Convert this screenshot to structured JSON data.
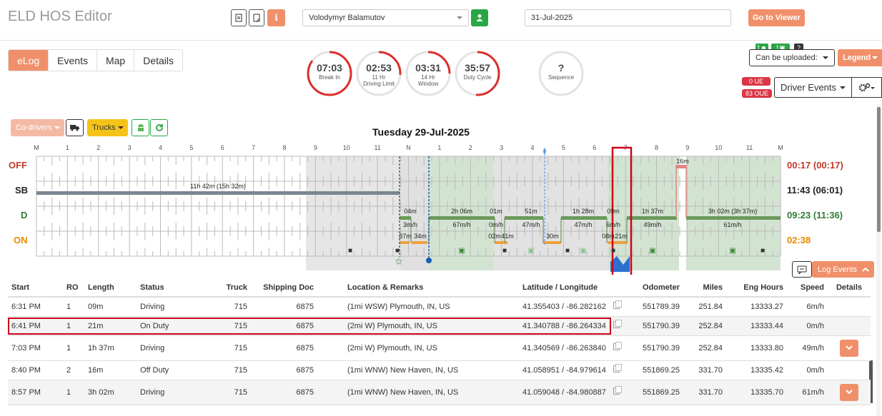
{
  "app": {
    "title": "ELD HOS Editor"
  },
  "header": {
    "driver": "Volodymyr Balamutov",
    "date": "31-Jul-2025",
    "go_to_viewer": "Go to Viewer",
    "info_icon": "info-icon"
  },
  "tabs": [
    {
      "label": "eLog",
      "active": true
    },
    {
      "label": "Events",
      "active": false
    },
    {
      "label": "Map",
      "active": false
    },
    {
      "label": "Details",
      "active": false
    }
  ],
  "gauges": [
    {
      "value": "07:03",
      "label1": "Break In",
      "label2": "",
      "fraction": 0.85
    },
    {
      "value": "02:53",
      "label1": "11 Hr",
      "label2": "Driving Limit",
      "fraction": 0.26
    },
    {
      "value": "03:31",
      "label1": "14 Hr",
      "label2": "Window",
      "fraction": 0.25
    },
    {
      "value": "35:57",
      "label1": "Duty Cycle",
      "label2": "",
      "fraction": 0.51
    },
    {
      "value": "?",
      "label1": "Sequence",
      "label2": "",
      "fraction": 0
    }
  ],
  "upload": {
    "badge1": "1",
    "badge2": "1",
    "badge3": "?",
    "label": "Can be uploaded:",
    "legend": "Legend",
    "ue": "0 UE",
    "oue": "83 OUE",
    "driver_events": "Driver Events"
  },
  "toolbar": {
    "co_drivers": "Co-drivers",
    "trucks": "Trucks"
  },
  "chart": {
    "title": "Tuesday 29-Jul-2025",
    "hour_labels": [
      "M",
      "1",
      "2",
      "3",
      "4",
      "5",
      "6",
      "7",
      "8",
      "9",
      "10",
      "11",
      "N",
      "1",
      "2",
      "3",
      "4",
      "5",
      "6",
      "7",
      "8",
      "9",
      "10",
      "11",
      "M"
    ],
    "rows": [
      {
        "label": "OFF",
        "color": "#c0392b",
        "total": "00:17 (00:17)"
      },
      {
        "label": "SB",
        "color": "#222222",
        "total": "11:43 (06:01)"
      },
      {
        "label": "D",
        "color": "#2e7d32",
        "total": "09:23 (11:36)"
      },
      {
        "label": "ON",
        "color": "#e08a00",
        "total": "02:38"
      }
    ],
    "segment_labels": {
      "sb": "11h 42m (15h 32m)",
      "off16": "16m",
      "d1": "04m",
      "d1s": "3m/h",
      "d2": "2h 06m",
      "d2s": "67m/h",
      "d3": "01m",
      "d3s": "0m/h",
      "d4": "51m",
      "d4s": "47m/h",
      "d5": "1h 28m",
      "d5s": "47m/h",
      "d6": "09m",
      "d6s": "6m/h",
      "d7": "1h 37m",
      "d7s": "49m/h",
      "d8": "3h 02m (3h 37m)",
      "d8s": "61m/h",
      "on1": "37m",
      "on2": "34m",
      "on3": "02m",
      "on4": "41m",
      "on5": "30m",
      "on6": "08m",
      "on7": "21m"
    }
  },
  "log_events": {
    "label": "Log Events"
  },
  "table": {
    "headers": [
      "Start",
      "RO",
      "Length",
      "Status",
      "Truck",
      "Shipping Doc",
      "Location & Remarks",
      "Latitude / Longitude",
      "",
      "Odometer",
      "Miles",
      "Eng Hours",
      "Speed",
      "Details"
    ],
    "rows": [
      {
        "start": "6:31 PM",
        "ro": "1",
        "length": "09m",
        "status": "Driving",
        "truck": "715",
        "doc": "6875",
        "loc": "(1mi WSW) Plymouth, IN, US",
        "latlon": "41.355403 / -86.282162",
        "odo": "551789.39",
        "miles": "251.84",
        "eng": "13333.27",
        "speed": "6m/h"
      },
      {
        "start": "6:41 PM",
        "ro": "1",
        "length": "21m",
        "status": "On Duty",
        "truck": "715",
        "doc": "6875",
        "loc": "(2mi W) Plymouth, IN, US",
        "latlon": "41.340788 / -86.264334",
        "odo": "551790.39",
        "miles": "252.84",
        "eng": "13333.44",
        "speed": "0m/h"
      },
      {
        "start": "7:03 PM",
        "ro": "1",
        "length": "1h 37m",
        "status": "Driving",
        "truck": "715",
        "doc": "6875",
        "loc": "(2mi W) Plymouth, IN, US",
        "latlon": "41.340569 / -86.263840",
        "odo": "551790.39",
        "miles": "252.84",
        "eng": "13333.80",
        "speed": "49m/h"
      },
      {
        "start": "8:40 PM",
        "ro": "2",
        "length": "16m",
        "status": "Off Duty",
        "truck": "715",
        "doc": "6875",
        "loc": "(1mi WNW) New Haven, IN, US",
        "latlon": "41.058951 / -84.979614",
        "odo": "551869.25",
        "miles": "331.70",
        "eng": "13335.42",
        "speed": "0m/h"
      },
      {
        "start": "8:57 PM",
        "ro": "1",
        "length": "3h 02m",
        "status": "Driving",
        "truck": "715",
        "doc": "6875",
        "loc": "(1mi WNW) New Haven, IN, US",
        "latlon": "41.059048 / -84.980887",
        "odo": "551869.25",
        "miles": "331.70",
        "eng": "13335.70",
        "speed": "61m/h"
      }
    ]
  }
}
